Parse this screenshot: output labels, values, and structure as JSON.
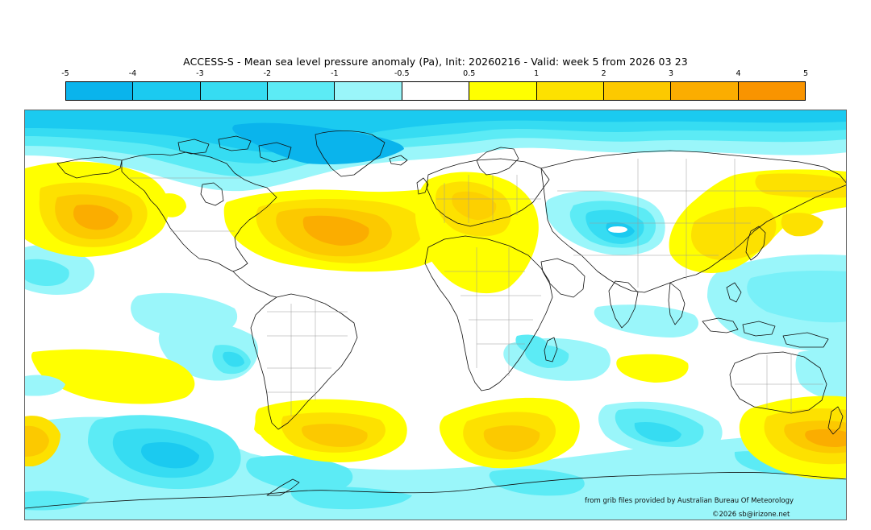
{
  "map": {
    "title": "ACCESS-S - Mean sea level pressure anomaly (Pa), Init: 20260216 - Valid: week 5 from 2026 03 23",
    "legend": {
      "ticks": [
        "-5",
        "-4",
        "-3",
        "-2",
        "-1",
        "-0.5",
        "0.5",
        "1",
        "2",
        "3",
        "4",
        "5"
      ],
      "colors": [
        "#0ab4ec",
        "#1bcaf0",
        "#36dcf2",
        "#5cebf5",
        "#9af6fa",
        "#ffffff",
        "#ffff00",
        "#fde100",
        "#fcc900",
        "#fbad00",
        "#f99400"
      ]
    },
    "credit_source": "from grib files provided by Australian Bureau Of Meteorology",
    "credit_copyright": "©2026 sb@irizone.net"
  }
}
